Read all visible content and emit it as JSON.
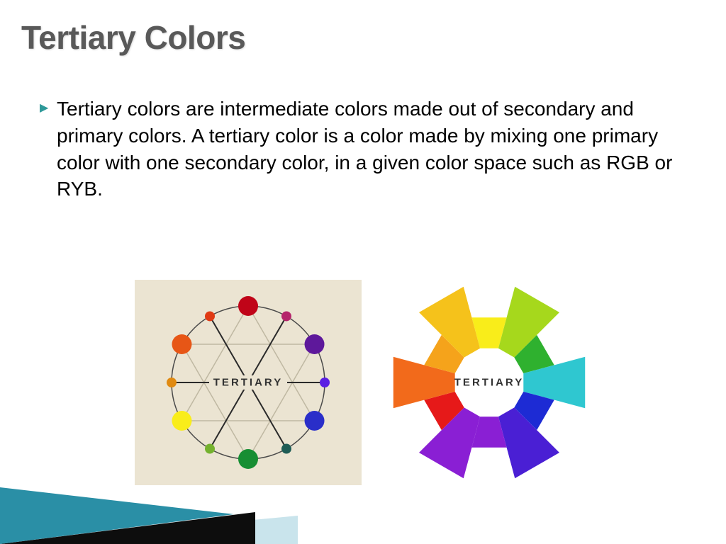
{
  "title": "Tertiary Colors",
  "bullet_symbol": "▶",
  "bullet_color": "#2e9999",
  "body_text": "Tertiary colors are intermediate colors made out of secondary and primary colors. A tertiary color is a color made by mixing one primary color with one secondary color, in a given color space such as RGB or RYB.",
  "body_fontsize": 28,
  "title_fontsize": 46,
  "title_color": "#595959",
  "diagram_left": {
    "type": "color-wheel-dots",
    "background": "#ebe4d2",
    "label": "TERTIARY",
    "label_color": "#333333",
    "ring_radius": 108,
    "dots": [
      {
        "angle": -90,
        "color": "#c00418",
        "size": 28
      },
      {
        "angle": -60,
        "color": "#b5246b",
        "size": 14
      },
      {
        "angle": -30,
        "color": "#5e189b",
        "size": 28
      },
      {
        "angle": 0,
        "color": "#5a1fe3",
        "size": 14
      },
      {
        "angle": 30,
        "color": "#2a2ec9",
        "size": 28
      },
      {
        "angle": 60,
        "color": "#1e5c55",
        "size": 14
      },
      {
        "angle": 90,
        "color": "#178e33",
        "size": 28
      },
      {
        "angle": 120,
        "color": "#74b12e",
        "size": 14
      },
      {
        "angle": 150,
        "color": "#f9ed1a",
        "size": 28
      },
      {
        "angle": 180,
        "color": "#e08a12",
        "size": 14
      },
      {
        "angle": -150,
        "color": "#e75616",
        "size": 28
      },
      {
        "angle": -120,
        "color": "#e03a14",
        "size": 14
      }
    ],
    "spokes": [
      [
        -60,
        120
      ],
      [
        -120,
        60
      ],
      [
        0,
        180
      ]
    ]
  },
  "diagram_right": {
    "type": "color-wheel-segments",
    "background": "#ffffff",
    "label": "TERTIARY",
    "label_color": "#333333",
    "inner_radius": 50,
    "outer_radius_big": 140,
    "outer_radius_small": 95,
    "segments": [
      {
        "angle": -90,
        "color": "#f9ed1a",
        "big": false
      },
      {
        "angle": -60,
        "color": "#a6d81c",
        "big": true
      },
      {
        "angle": -30,
        "color": "#2fb12f",
        "big": false
      },
      {
        "angle": 0,
        "color": "#2fc7d0",
        "big": true
      },
      {
        "angle": 30,
        "color": "#1d2bd4",
        "big": false
      },
      {
        "angle": 60,
        "color": "#4a1fd4",
        "big": true
      },
      {
        "angle": 90,
        "color": "#8a1fd4",
        "big": false
      },
      {
        "angle": 120,
        "color": "#8a1fd4",
        "big": true
      },
      {
        "angle": 150,
        "color": "#e61919",
        "big": false
      },
      {
        "angle": 180,
        "color": "#f26a1b",
        "big": true
      },
      {
        "angle": -150,
        "color": "#f5a31b",
        "big": false
      },
      {
        "angle": -120,
        "color": "#f5c21b",
        "big": true
      }
    ]
  },
  "corner_accent": {
    "colors": [
      "#2a8fa6",
      "#0d0d0d",
      "#c9e4ec"
    ]
  }
}
